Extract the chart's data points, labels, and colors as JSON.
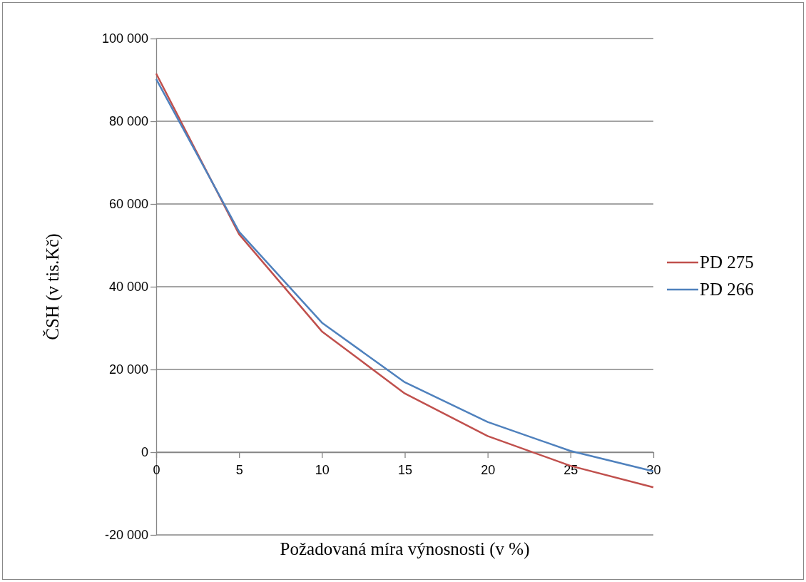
{
  "chart_data": {
    "type": "line",
    "xlabel": "Požadovaná míra výnosnosti (v %)",
    "ylabel": "ČSH (v tis.Kč)",
    "x": [
      0,
      5,
      10,
      15,
      20,
      25,
      30
    ],
    "series": [
      {
        "name": "PD 275",
        "color": "#c0504d",
        "values": [
          91500,
          52700,
          29200,
          14200,
          3900,
          -3300,
          -8500
        ]
      },
      {
        "name": "PD 266",
        "color": "#4f81bd",
        "values": [
          90200,
          53300,
          31300,
          16900,
          7300,
          300,
          -4600
        ]
      }
    ],
    "xlim": [
      0,
      30
    ],
    "xticks": [
      0,
      5,
      10,
      15,
      20,
      25,
      30
    ],
    "ylim": [
      -20000,
      100000
    ],
    "yticks": [
      {
        "value": -20000,
        "label": "-20 000"
      },
      {
        "value": 0,
        "label": "0"
      },
      {
        "value": 20000,
        "label": "20 000"
      },
      {
        "value": 40000,
        "label": "40 000"
      },
      {
        "value": 60000,
        "label": "60 000"
      },
      {
        "value": 80000,
        "label": "80 000"
      },
      {
        "value": 100000,
        "label": "100 000"
      }
    ],
    "grid": "y",
    "legend": "right",
    "marker": "none",
    "line_style": "solid"
  }
}
